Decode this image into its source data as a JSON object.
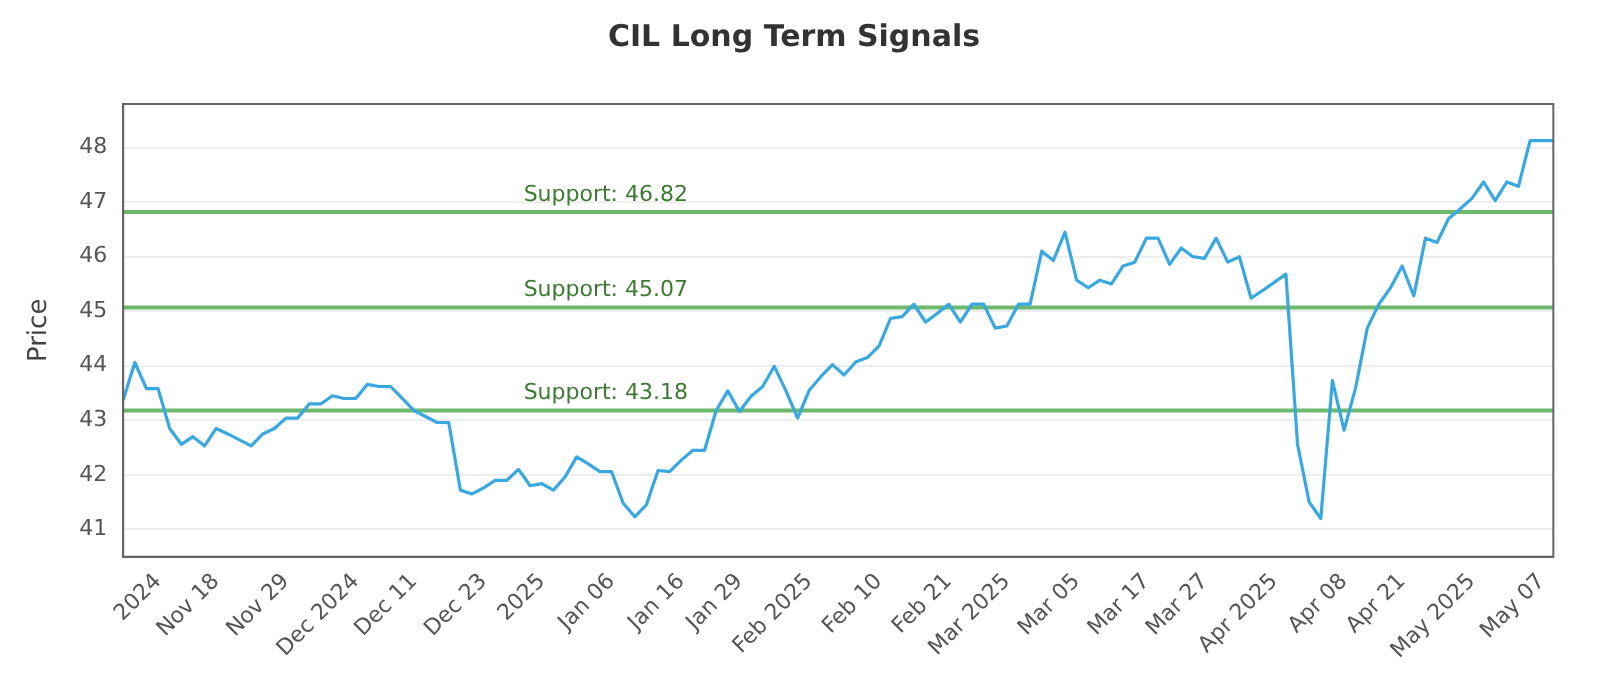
{
  "chart_data": {
    "type": "line",
    "title": "CIL Long Term Signals",
    "ylabel": "Price",
    "categories": [
      null,
      null,
      null,
      "2024",
      null,
      null,
      null,
      null,
      "Nov 18",
      null,
      null,
      null,
      null,
      null,
      "Nov 29",
      null,
      null,
      null,
      null,
      null,
      "Dec 2024",
      null,
      null,
      null,
      null,
      "Dec 11",
      null,
      null,
      null,
      null,
      null,
      "Dec 23",
      null,
      null,
      null,
      null,
      "2025",
      null,
      null,
      null,
      null,
      null,
      "Jan 06",
      null,
      null,
      null,
      null,
      null,
      "Jan 16",
      null,
      null,
      null,
      null,
      "Jan 29",
      null,
      null,
      null,
      null,
      null,
      "Feb 2025",
      null,
      null,
      null,
      null,
      null,
      "Feb 10",
      null,
      null,
      null,
      null,
      null,
      "Feb 21",
      null,
      null,
      null,
      null,
      "Mar 2025",
      null,
      null,
      null,
      null,
      null,
      "Mar 05",
      null,
      null,
      null,
      null,
      null,
      "Mar 17",
      null,
      null,
      null,
      null,
      "Mar 27",
      null,
      null,
      null,
      null,
      null,
      "Apr 2025",
      null,
      null,
      null,
      null,
      null,
      "Apr 08",
      null,
      null,
      null,
      null,
      "Apr 21",
      null,
      null,
      null,
      null,
      null,
      "May 2025",
      null,
      null,
      null,
      null,
      null,
      "May 07",
      null
    ],
    "series": [
      {
        "color": "#3aa8e0",
        "values": [
          43.37,
          44.06,
          43.58,
          43.58,
          42.85,
          42.56,
          42.7,
          42.53,
          42.85,
          42.75,
          42.64,
          42.53,
          42.75,
          42.85,
          43.04,
          43.04,
          43.3,
          43.3,
          43.45,
          43.4,
          43.4,
          43.66,
          43.62,
          43.62,
          43.4,
          43.18,
          43.07,
          42.96,
          42.96,
          41.72,
          41.65,
          41.76,
          41.9,
          41.9,
          42.1,
          41.8,
          41.84,
          41.72,
          41.96,
          42.33,
          42.2,
          42.06,
          42.06,
          41.48,
          41.23,
          41.45,
          42.08,
          42.06,
          42.27,
          42.45,
          42.45,
          43.18,
          43.54,
          43.16,
          43.44,
          43.62,
          43.99,
          43.54,
          43.04,
          43.55,
          43.8,
          44.02,
          43.83,
          44.07,
          44.15,
          44.36,
          44.87,
          44.9,
          45.13,
          44.8,
          44.96,
          45.13,
          44.8,
          45.13,
          45.13,
          44.69,
          44.73,
          45.13,
          45.13,
          46.1,
          45.93,
          46.45,
          45.57,
          45.43,
          45.57,
          45.5,
          45.83,
          45.9,
          46.34,
          46.34,
          45.86,
          46.16,
          46.0,
          45.97,
          46.34,
          45.9,
          46.0,
          45.24,
          45.38,
          45.53,
          45.68,
          42.56,
          41.5,
          41.2,
          43.73,
          42.82,
          43.6,
          44.69,
          45.13,
          45.43,
          45.83,
          45.28,
          46.34,
          46.26,
          46.7,
          46.88,
          47.07,
          47.37,
          47.03,
          47.37,
          47.29,
          48.13,
          48.13,
          48.13
        ]
      }
    ],
    "ylim": [
      40.5,
      48.8
    ],
    "yticks": [
      41,
      42,
      43,
      44,
      45,
      46,
      47,
      48
    ],
    "grid": "y",
    "legend": false,
    "marker": "none",
    "line_style": "solid",
    "ref_lines": [
      {
        "axis": "y",
        "value": 46.82,
        "label": "Support: 46.82",
        "color": "#6cb86c"
      },
      {
        "axis": "y",
        "value": 45.07,
        "label": "Support: 45.07",
        "color": "#6cb86c"
      },
      {
        "axis": "y",
        "value": 43.18,
        "label": "Support: 43.18",
        "color": "#6cb86c"
      }
    ]
  }
}
